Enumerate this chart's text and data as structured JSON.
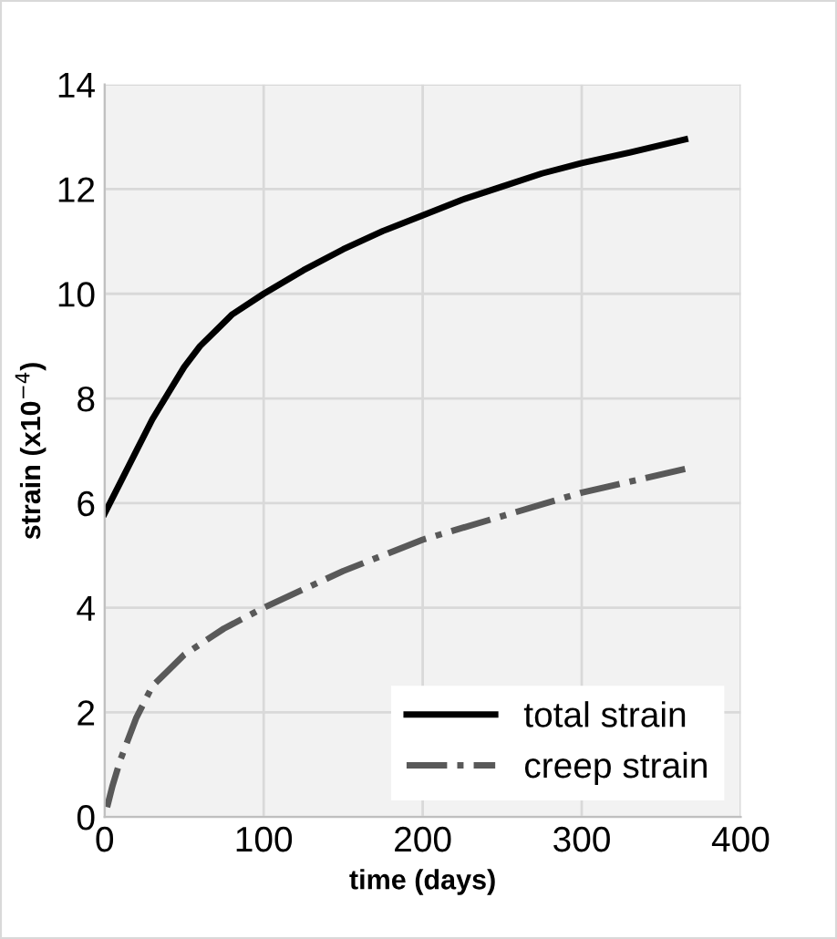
{
  "chart_data": {
    "type": "line",
    "xlabel": "time (days)",
    "ylabel": "strain (x10$^{−4}$)",
    "xlim": [
      0,
      400
    ],
    "ylim": [
      0,
      14
    ],
    "xticks": [
      0,
      100,
      200,
      300,
      400
    ],
    "yticks": [
      0,
      2,
      4,
      6,
      8,
      10,
      12,
      14
    ],
    "grid": true,
    "legend": "bottom right",
    "series": [
      {
        "name": "total strain",
        "color": "#000000",
        "line_style": "solid",
        "x": [
          0,
          10,
          20,
          30,
          40,
          50,
          60,
          70,
          80,
          100,
          125,
          150,
          175,
          200,
          225,
          250,
          275,
          300,
          330,
          365
        ],
        "values": [
          5.8,
          6.4,
          7.0,
          7.6,
          8.1,
          8.6,
          9.0,
          9.3,
          9.6,
          10.0,
          10.45,
          10.85,
          11.2,
          11.5,
          11.8,
          12.05,
          12.3,
          12.5,
          12.7,
          12.95
        ]
      },
      {
        "name": "creep strain",
        "color": "#595959",
        "line_style": "dashdot",
        "x": [
          0,
          5,
          10,
          20,
          30,
          40,
          50,
          75,
          100,
          125,
          150,
          175,
          200,
          250,
          300,
          365
        ],
        "values": [
          0,
          0.6,
          1.1,
          1.9,
          2.5,
          2.8,
          3.1,
          3.6,
          4.0,
          4.35,
          4.7,
          5.0,
          5.3,
          5.75,
          6.2,
          6.65
        ]
      }
    ]
  }
}
